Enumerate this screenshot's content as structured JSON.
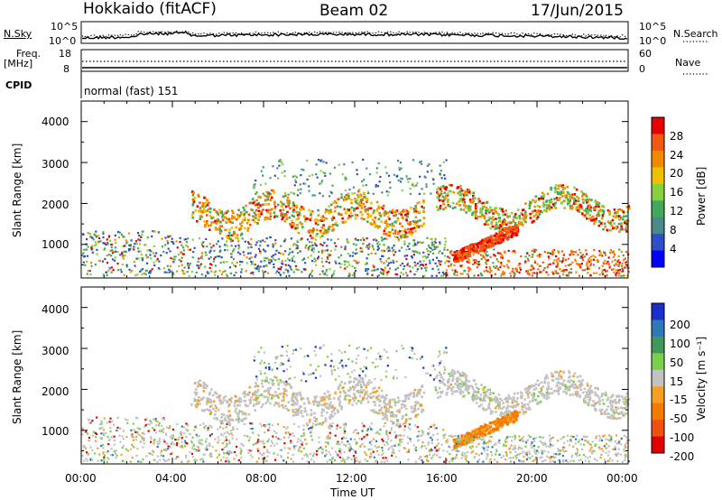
{
  "header": {
    "station": "Hokkaido (fitACF)",
    "beam": "Beam 02",
    "date": "17/Jun/2015"
  },
  "strip_labels": {
    "nsky": "N.Sky",
    "nsearch": "N.Search",
    "freq_line1": "Freq.",
    "freq_line2": "[MHz]",
    "nave": "Nave",
    "cpid": "CPID",
    "cpid_value": "normal (fast) 151",
    "noise_left_ticks": [
      "10^5",
      "10^0"
    ],
    "noise_right_ticks": [
      "10^5",
      "10^0"
    ],
    "freq_ticks": [
      "18",
      "8"
    ],
    "nave_ticks": [
      "60",
      "0"
    ]
  },
  "chart_data": [
    {
      "type": "heatmap",
      "name": "power",
      "ylabel": "Slant Range [km]",
      "y_ticks": [
        "1000",
        "2000",
        "3000",
        "4000"
      ],
      "ylim": [
        180,
        4500
      ],
      "colorbar_label": "Power [dB]",
      "colorbar_ticks": [
        "4",
        "8",
        "12",
        "16",
        "20",
        "24",
        "28"
      ],
      "colors": [
        "#0000ff",
        "#2f4fc8",
        "#4b8a8a",
        "#42a85a",
        "#86d23e",
        "#f0c000",
        "#f28a00",
        "#f05a10",
        "#e60000"
      ]
    },
    {
      "type": "heatmap",
      "name": "velocity",
      "ylabel": "Slant Range [km]",
      "y_ticks": [
        "1000",
        "2000",
        "3000",
        "4000"
      ],
      "ylim": [
        180,
        4500
      ],
      "colorbar_label": "Velocity [m s⁻¹]",
      "colorbar_ticks": [
        "200",
        "100",
        "50",
        "15",
        "-15",
        "-50",
        "-100",
        "-200"
      ],
      "colors": [
        "#1a2fd0",
        "#2e7ab8",
        "#3f9a5a",
        "#7ad04a",
        "#c2c2c2",
        "#f5a020",
        "#f57a00",
        "#f05010",
        "#e00000"
      ]
    }
  ],
  "x_axis": {
    "label": "Time UT",
    "ticks": [
      "00:00",
      "04:00",
      "08:00",
      "12:00",
      "16:00",
      "20:00",
      "00:00"
    ]
  }
}
